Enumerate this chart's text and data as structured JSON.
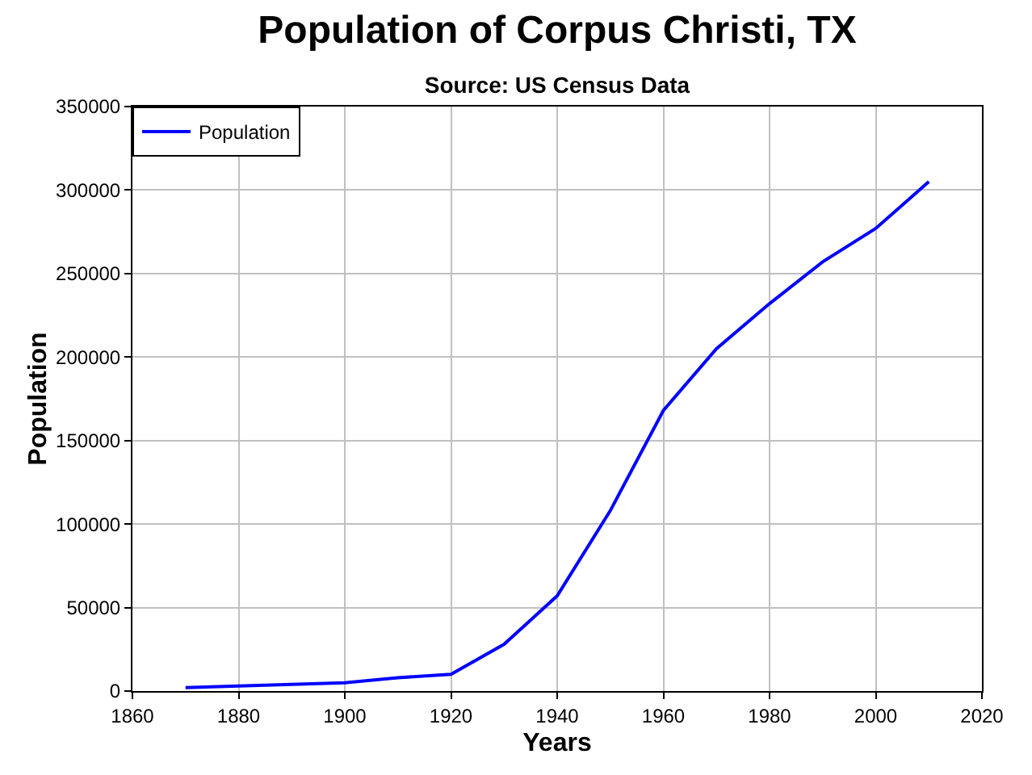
{
  "chart_data": {
    "type": "line",
    "title": "Population of Corpus Christi, TX",
    "subtitle": "Source: US Census Data",
    "xlabel": "Years",
    "ylabel": "Population",
    "x": [
      1870,
      1880,
      1890,
      1900,
      1910,
      1920,
      1930,
      1940,
      1950,
      1960,
      1970,
      1980,
      1990,
      2000,
      2010
    ],
    "series": [
      {
        "name": "Population",
        "color": "#0000ff",
        "values": [
          2000,
          3000,
          4000,
          5000,
          8000,
          10000,
          28000,
          57000,
          108000,
          168000,
          205000,
          232000,
          257000,
          277000,
          305000
        ]
      }
    ],
    "xlim": [
      1860,
      2020
    ],
    "xticks": [
      1860,
      1880,
      1900,
      1920,
      1940,
      1960,
      1980,
      2000,
      2020
    ],
    "ylim": [
      0,
      350000
    ],
    "yticks": [
      0,
      50000,
      100000,
      150000,
      200000,
      250000,
      300000,
      350000
    ],
    "grid": true,
    "legend": "top left",
    "marker": "none",
    "line_style": "solid"
  }
}
